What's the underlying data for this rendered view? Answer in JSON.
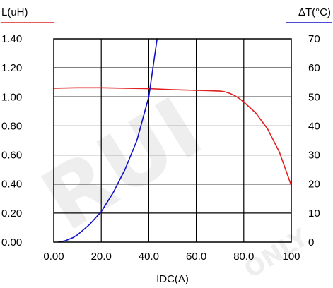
{
  "chart_data": {
    "type": "line",
    "xlabel": "IDC(A)",
    "ylabel_left": "L(uH)",
    "ylabel_right": "ΔT(°C)",
    "xlim": [
      0,
      100
    ],
    "ylim_left": [
      0,
      1.4
    ],
    "ylim_right": [
      0,
      70
    ],
    "x_ticks": [
      "0.00",
      "20.0",
      "40.0",
      "60.0",
      "80.0",
      "100"
    ],
    "y_left_ticks": [
      "0.00",
      "0.20",
      "0.40",
      "0.60",
      "0.80",
      "1.00",
      "1.20",
      "1.40"
    ],
    "y_right_ticks": [
      "0",
      "10",
      "20",
      "30",
      "40",
      "50",
      "60",
      "70"
    ],
    "grid": true,
    "watermark": [
      "RUI",
      "ONLY"
    ],
    "series": [
      {
        "axis": "left",
        "color": "#e02020",
        "x": [
          0,
          10,
          20,
          30,
          40,
          50,
          60,
          65,
          70,
          72,
          74,
          76,
          78,
          80,
          85,
          90,
          95,
          100
        ],
        "y": [
          1.06,
          1.063,
          1.063,
          1.06,
          1.057,
          1.05,
          1.045,
          1.043,
          1.04,
          1.035,
          1.025,
          1.01,
          0.99,
          0.965,
          0.89,
          0.78,
          0.62,
          0.39
        ]
      },
      {
        "axis": "right",
        "color": "#1010c8",
        "x": [
          2,
          5,
          8,
          10,
          15,
          20,
          25,
          30,
          35,
          40,
          43.5
        ],
        "y": [
          0,
          0.5,
          1.5,
          2.5,
          6,
          10.5,
          17,
          25,
          35,
          50,
          70
        ]
      }
    ]
  }
}
